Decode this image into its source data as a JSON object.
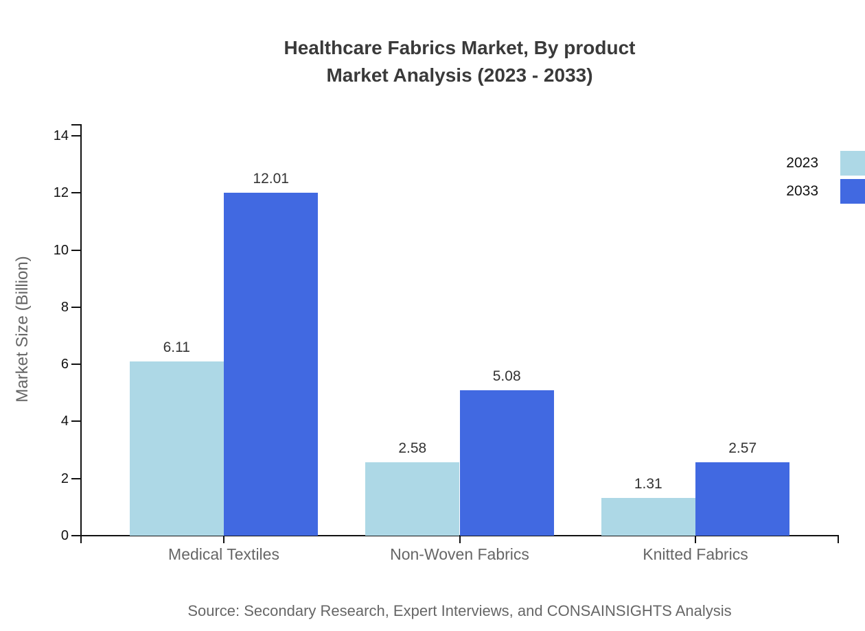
{
  "title": {
    "line1": "Healthcare Fabrics Market, By product",
    "line2": "Market Analysis (2023 - 2033)"
  },
  "source": "Source: Secondary Research, Expert Interviews, and CONSAINSIGHTS Analysis",
  "chart_data": {
    "type": "bar",
    "title": "Healthcare Fabrics Market, By product Market Analysis (2023 - 2033)",
    "categories": [
      "Medical Textiles",
      "Non-Woven Fabrics",
      "Knitted Fabrics"
    ],
    "series": [
      {
        "name": "2023",
        "color": "#ADD8E6",
        "values": [
          6.11,
          2.58,
          1.31
        ]
      },
      {
        "name": "2033",
        "color": "#4169E1",
        "values": [
          12.01,
          5.08,
          2.57
        ]
      }
    ],
    "xlabel": "",
    "ylabel": "Market Size (Billion)",
    "ylim": [
      0,
      14
    ],
    "yticks": [
      0,
      2,
      4,
      6,
      8,
      10,
      12,
      14
    ],
    "grid": false,
    "legend_position": "top-right",
    "value_labels": true
  }
}
